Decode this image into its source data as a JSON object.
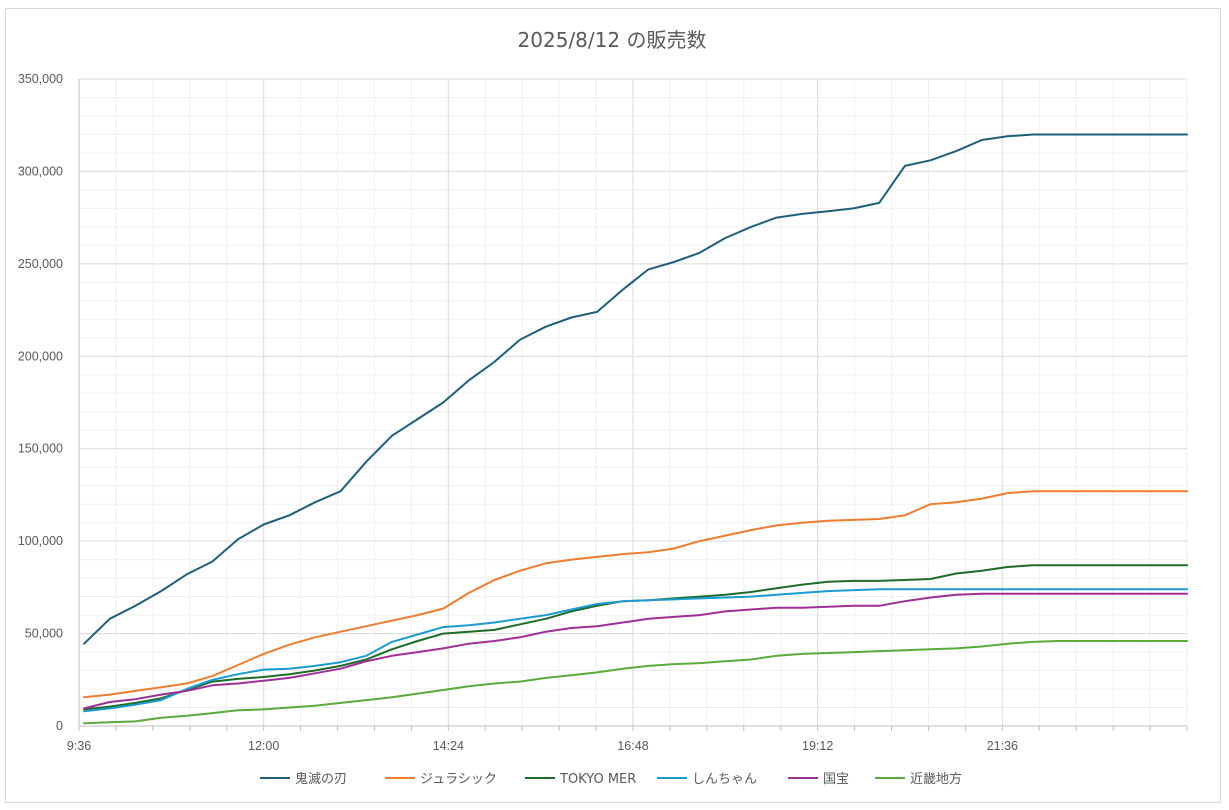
{
  "chart_data": {
    "type": "line",
    "title": "2025/8/12 の販売数",
    "xlabel": "",
    "ylabel": "",
    "ylim": [
      0,
      350000
    ],
    "y_ticks": [
      "0",
      "50,000",
      "100,000",
      "150,000",
      "200,000",
      "250,000",
      "300,000",
      "350,000"
    ],
    "y_tick_values": [
      0,
      50000,
      100000,
      150000,
      200000,
      250000,
      300000,
      350000
    ],
    "x_ticks": [
      "9:36",
      "12:00",
      "14:24",
      "16:48",
      "19:12",
      "21:36"
    ],
    "x_tick_minutes": [
      576,
      720,
      864,
      1008,
      1152,
      1296
    ],
    "xlim_minutes": [
      576,
      1440
    ],
    "x": [
      "9:40",
      "10:00",
      "10:20",
      "10:40",
      "11:00",
      "11:20",
      "11:40",
      "12:00",
      "12:20",
      "12:40",
      "13:00",
      "13:20",
      "13:40",
      "14:00",
      "14:20",
      "14:40",
      "15:00",
      "15:20",
      "15:40",
      "16:00",
      "16:20",
      "16:40",
      "17:00",
      "17:20",
      "17:40",
      "18:00",
      "18:20",
      "18:40",
      "19:00",
      "19:20",
      "19:40",
      "20:00",
      "20:20",
      "20:40",
      "21:00",
      "21:20",
      "21:40",
      "22:00",
      "22:20",
      "22:40",
      "23:00",
      "23:20",
      "23:40",
      "24:00"
    ],
    "grid": true,
    "legend_position": "bottom",
    "series": [
      {
        "name": "鬼滅の刃",
        "color": "#1f5f7a",
        "values": [
          44500,
          58000,
          65000,
          73000,
          82000,
          89000,
          101000,
          109000,
          114000,
          121000,
          127000,
          143000,
          157000,
          166000,
          175000,
          187000,
          197000,
          209000,
          216000,
          221000,
          224000,
          236000,
          247000,
          251000,
          256000,
          264000,
          270000,
          275000,
          277000,
          278500,
          280000,
          283000,
          303000,
          306000,
          311000,
          317000,
          319000,
          320000,
          320000,
          320000,
          320000,
          320000,
          320000,
          320000
        ]
      },
      {
        "name": "ジュラシック",
        "color": "#ed7d31",
        "values": [
          15500,
          17000,
          19000,
          21000,
          23000,
          27000,
          33000,
          39000,
          44000,
          48000,
          51000,
          54000,
          57000,
          60000,
          63500,
          72000,
          79000,
          84000,
          88000,
          90000,
          91500,
          93000,
          94000,
          96000,
          100000,
          103000,
          106000,
          108500,
          110000,
          111000,
          111500,
          112000,
          114000,
          120000,
          121000,
          123000,
          126000,
          127000,
          127000,
          127000,
          127000,
          127000,
          127000,
          127000
        ]
      },
      {
        "name": "TOKYO MER",
        "color": "#1e6b2a",
        "values": [
          9000,
          10500,
          12500,
          15000,
          19500,
          24000,
          25500,
          26500,
          28000,
          30000,
          32500,
          36000,
          41500,
          46000,
          50000,
          51000,
          52000,
          55000,
          58000,
          62000,
          65000,
          67500,
          68000,
          69000,
          70000,
          71000,
          72500,
          74500,
          76500,
          78000,
          78500,
          78500,
          79000,
          79500,
          82500,
          84000,
          86000,
          87000,
          87000,
          87000,
          87000,
          87000,
          87000,
          87000
        ]
      },
      {
        "name": "しんちゃん",
        "color": "#1b9bd1",
        "values": [
          8000,
          9500,
          11500,
          14000,
          20000,
          25000,
          28000,
          30500,
          31000,
          32500,
          34500,
          38000,
          45500,
          49500,
          53500,
          54500,
          56000,
          58000,
          60000,
          63000,
          66000,
          67500,
          68000,
          68500,
          69000,
          69500,
          70000,
          71000,
          72000,
          73000,
          73500,
          74000,
          74000,
          74000,
          74000,
          74000,
          74000,
          74000,
          74000,
          74000,
          74000,
          74000,
          74000,
          74000
        ]
      },
      {
        "name": "国宝",
        "color": "#9e2f95",
        "values": [
          9500,
          13000,
          14500,
          17000,
          19000,
          22000,
          23000,
          24500,
          26000,
          28500,
          31000,
          35000,
          38000,
          40000,
          42000,
          44500,
          46000,
          48000,
          51000,
          53000,
          54000,
          56000,
          58000,
          59000,
          60000,
          62000,
          63000,
          64000,
          64000,
          64500,
          65000,
          65000,
          67500,
          69500,
          71000,
          71500,
          71500,
          71500,
          71500,
          71500,
          71500,
          71500,
          71500,
          71500
        ]
      },
      {
        "name": "近畿地方",
        "color": "#5aab3c",
        "values": [
          1500,
          2000,
          2500,
          4500,
          5500,
          7000,
          8500,
          9000,
          10000,
          11000,
          12500,
          14000,
          15500,
          17500,
          19500,
          21500,
          23000,
          24000,
          26000,
          27500,
          29000,
          31000,
          32500,
          33500,
          34000,
          35000,
          36000,
          38000,
          39000,
          39500,
          40000,
          40500,
          41000,
          41500,
          42000,
          43000,
          44500,
          45500,
          46000,
          46000,
          46000,
          46000,
          46000,
          46000
        ]
      }
    ]
  }
}
